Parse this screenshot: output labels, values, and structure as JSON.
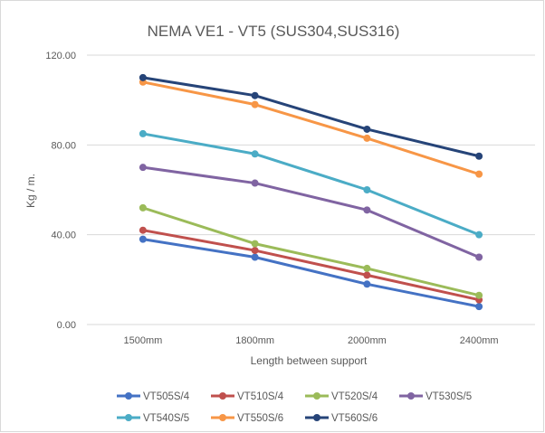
{
  "chart_data": {
    "type": "line",
    "title": "NEMA VE1 - VT5 (SUS304,SUS316)",
    "xlabel": "Length between support",
    "ylabel": "Kg / m.",
    "categories": [
      "1500mm",
      "1800mm",
      "2000mm",
      "2400mm"
    ],
    "ylim": [
      0,
      120
    ],
    "yticks": [
      "0.00",
      "40.00",
      "80.00",
      "120.00"
    ],
    "grid": true,
    "legend_position": "bottom",
    "series": [
      {
        "name": "VT505S/4",
        "color": "#4472C4",
        "values": [
          38,
          30,
          18,
          8
        ]
      },
      {
        "name": "VT510S/4",
        "color": "#C0504D",
        "values": [
          42,
          33,
          22,
          11
        ]
      },
      {
        "name": "VT520S/4",
        "color": "#9BBB59",
        "values": [
          52,
          36,
          25,
          13
        ]
      },
      {
        "name": "VT530S/5",
        "color": "#8064A2",
        "values": [
          70,
          63,
          51,
          30
        ]
      },
      {
        "name": "VT540S/5",
        "color": "#4BACC6",
        "values": [
          85,
          76,
          60,
          40
        ]
      },
      {
        "name": "VT550S/6",
        "color": "#F79646",
        "values": [
          108,
          98,
          83,
          67
        ]
      },
      {
        "name": "VT560S/6",
        "color": "#264478",
        "values": [
          110,
          102,
          87,
          75
        ]
      }
    ]
  }
}
